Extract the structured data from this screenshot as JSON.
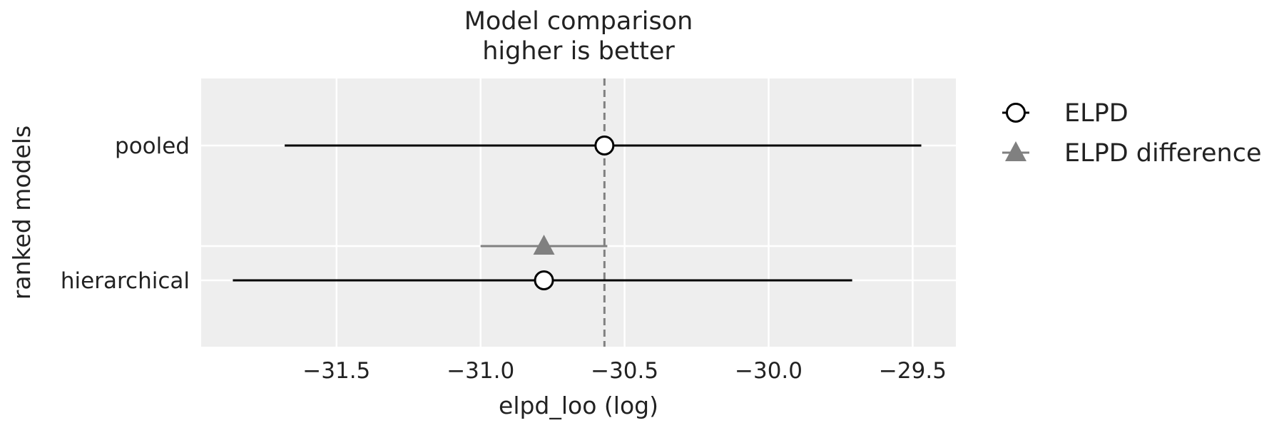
{
  "chart_data": {
    "type": "scatter",
    "title": "Model comparison",
    "subtitle": "higher is better",
    "xlabel": "elpd_loo (log)",
    "ylabel": "ranked models",
    "xlim": [
      -31.97,
      -29.35
    ],
    "xticks": [
      -31.5,
      -31.0,
      -30.5,
      -30.0,
      -29.5
    ],
    "xtick_labels": [
      "−31.5",
      "−31.0",
      "−30.5",
      "−30.0",
      "−29.5"
    ],
    "categories": [
      "pooled",
      "hierarchical"
    ],
    "reference_line": -30.57,
    "grid": true,
    "legend": {
      "placement": "outside-right",
      "entries": [
        {
          "label": "ELPD",
          "marker": "circle-open",
          "color": "#000000"
        },
        {
          "label": "ELPD difference",
          "marker": "triangle",
          "color": "#808080"
        }
      ]
    },
    "series": [
      {
        "name": "ELPD",
        "color": "#000000",
        "points": [
          {
            "model": "pooled",
            "value": -30.57,
            "low": -31.68,
            "high": -29.47
          },
          {
            "model": "hierarchical",
            "value": -30.78,
            "low": -31.86,
            "high": -29.71
          }
        ]
      },
      {
        "name": "ELPD difference",
        "color": "#808080",
        "points": [
          {
            "model": "hierarchical",
            "value": -30.78,
            "low": -31.0,
            "high": -30.56
          }
        ]
      }
    ]
  }
}
